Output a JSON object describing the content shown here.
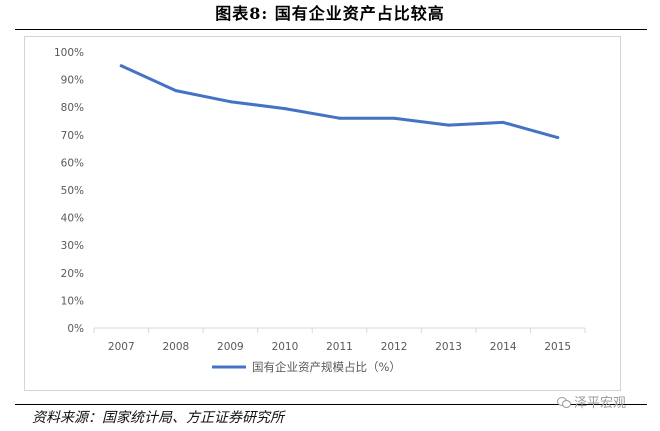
{
  "page_title": "图表8:    国有企业资产占比较高",
  "source_text": "资料来源：国家统计局、方正证券研究所",
  "watermark_text": "泽平宏观",
  "colors": {
    "series": "#4472c4",
    "axis": "#d9d9d9",
    "tick_text": "#595959"
  },
  "chart_data": {
    "type": "line",
    "x": [
      "2007",
      "2008",
      "2009",
      "2010",
      "2011",
      "2012",
      "2013",
      "2014",
      "2015"
    ],
    "series": [
      {
        "name": "国有企业资产规模占比（%）",
        "values": [
          95,
          86,
          82,
          79.5,
          76,
          76,
          73.5,
          74.5,
          69
        ]
      }
    ],
    "y_ticks": [
      "0%",
      "10%",
      "20%",
      "30%",
      "40%",
      "50%",
      "60%",
      "70%",
      "80%",
      "90%",
      "100%"
    ],
    "ylim": [
      0,
      100
    ],
    "grid": false,
    "legend_position": "bottom"
  }
}
